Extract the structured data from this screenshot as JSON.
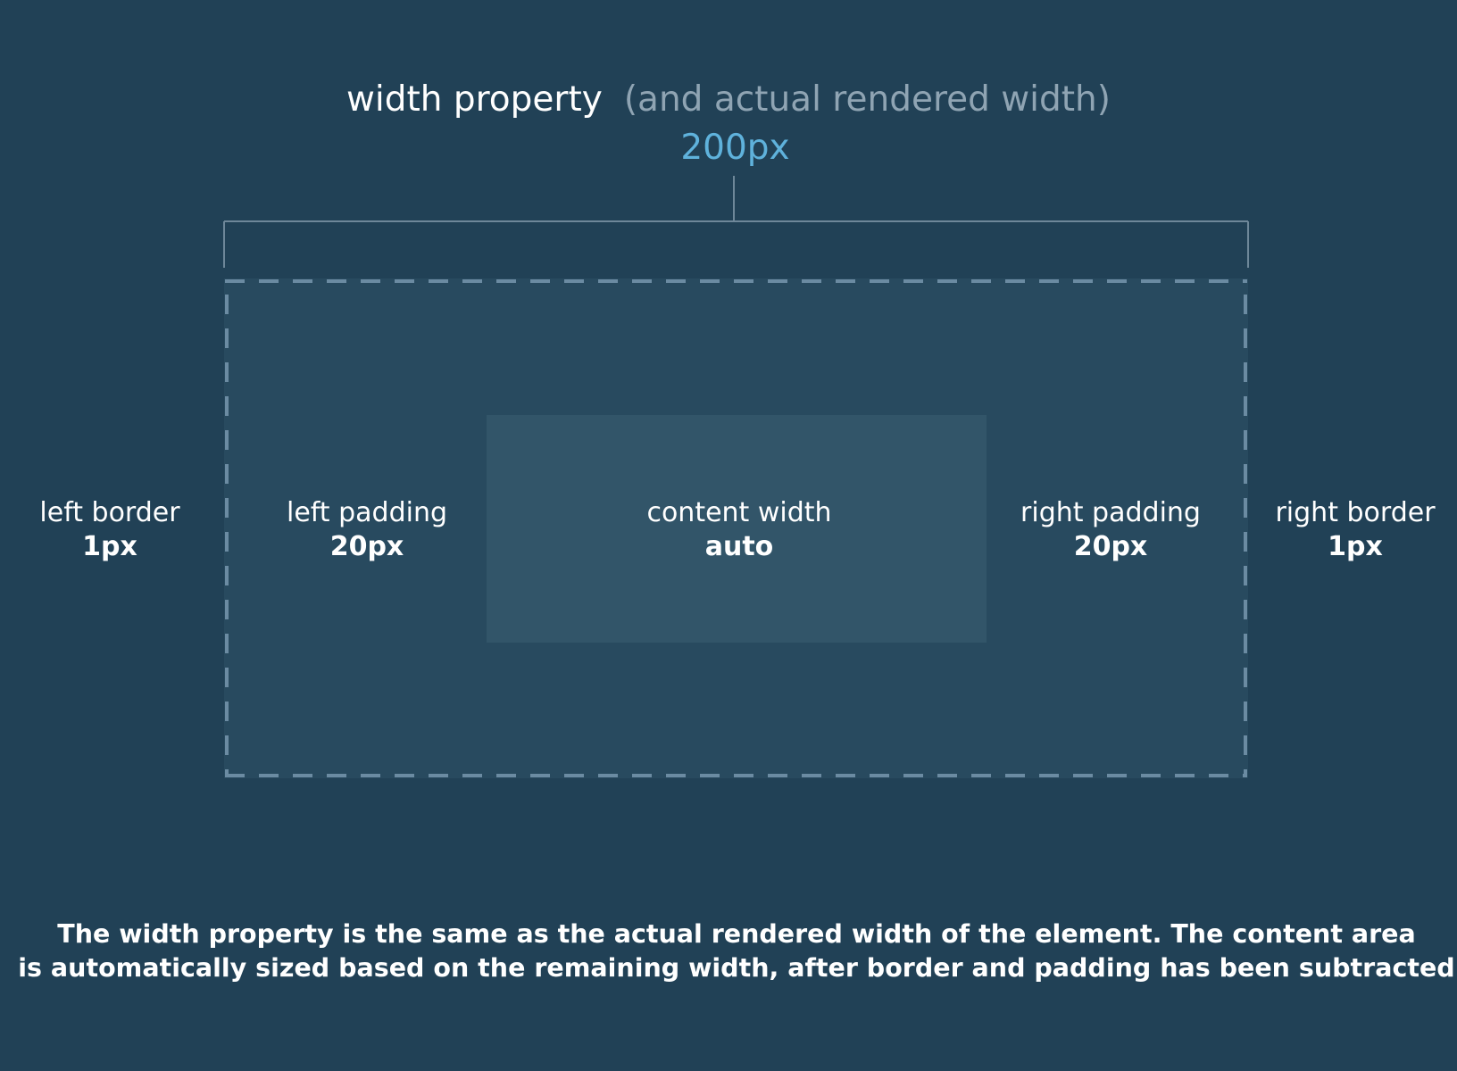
{
  "header": {
    "title": "width property",
    "subtitle": "(and actual rendered width)",
    "width_value": "200px"
  },
  "labels": {
    "left_border": {
      "name": "left border",
      "value": "1px"
    },
    "left_padding": {
      "name": "left padding",
      "value": "20px"
    },
    "content_width": {
      "name": "content width",
      "value": "auto"
    },
    "right_padding": {
      "name": "right padding",
      "value": "20px"
    },
    "right_border": {
      "name": "right border",
      "value": "1px"
    }
  },
  "caption": {
    "line1": "The width property is the same as the actual rendered width of the element. The content area",
    "line2": "is automatically sized based on the remaining width, after border and padding has been subtracted"
  },
  "colors": {
    "background": "#214156",
    "padding_area": "#284a5f",
    "content_area": "#325569",
    "accent": "#5fb2dc",
    "muted_text": "#8fa4b3",
    "bracket": "#6e8799",
    "dashed_border": "#6b8ba2"
  }
}
